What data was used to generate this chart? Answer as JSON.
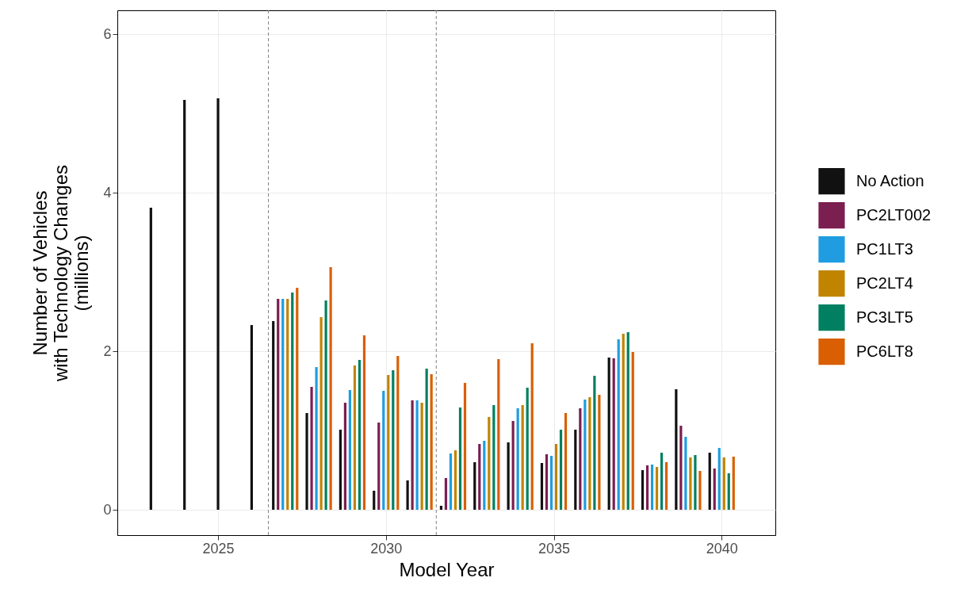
{
  "chart_data": {
    "type": "bar",
    "xlabel": "Model Year",
    "ylabel": "Number of Vehicles\nwith Technology Changes\n(millions)",
    "x": [
      2023,
      2024,
      2025,
      2026,
      2027,
      2028,
      2029,
      2030,
      2031,
      2032,
      2033,
      2034,
      2035,
      2036,
      2037,
      2038,
      2039,
      2040
    ],
    "series": [
      {
        "name": "No Action",
        "color": "#111111",
        "values": [
          3.81,
          5.17,
          5.19,
          2.33,
          2.38,
          1.22,
          1.01,
          0.24,
          0.37,
          0.05,
          0.6,
          0.85,
          0.59,
          1.01,
          1.92,
          0.5,
          1.52,
          0.72
        ]
      },
      {
        "name": "PC2LT002",
        "color": "#7b1e50",
        "values": [
          null,
          null,
          null,
          null,
          2.66,
          1.55,
          1.35,
          1.1,
          1.38,
          0.4,
          0.83,
          1.12,
          0.7,
          1.28,
          1.91,
          0.56,
          1.06,
          0.52
        ]
      },
      {
        "name": "PC1LT3",
        "color": "#1f9de0",
        "values": [
          null,
          null,
          null,
          null,
          2.66,
          1.8,
          1.51,
          1.5,
          1.38,
          0.71,
          0.87,
          1.28,
          0.68,
          1.39,
          2.15,
          0.57,
          0.92,
          0.78
        ]
      },
      {
        "name": "PC2LT4",
        "color": "#c08400",
        "values": [
          null,
          null,
          null,
          null,
          2.66,
          2.43,
          1.82,
          1.7,
          1.35,
          0.75,
          1.17,
          1.32,
          0.83,
          1.42,
          2.22,
          0.54,
          0.66,
          0.66
        ]
      },
      {
        "name": "PC3LT5",
        "color": "#008060",
        "values": [
          null,
          null,
          null,
          null,
          2.74,
          2.64,
          1.89,
          1.76,
          1.78,
          1.29,
          1.32,
          1.54,
          1.01,
          1.69,
          2.24,
          0.72,
          0.69,
          0.46
        ]
      },
      {
        "name": "PC6LT8",
        "color": "#d95f02",
        "values": [
          null,
          null,
          null,
          null,
          2.8,
          3.06,
          2.2,
          1.94,
          1.71,
          1.6,
          1.9,
          2.1,
          1.22,
          1.45,
          1.99,
          0.6,
          0.49,
          0.67
        ]
      }
    ],
    "xlim": [
      2022,
      2041.6
    ],
    "xticks": [
      2025,
      2030,
      2035,
      2040
    ],
    "ylim": [
      -0.32,
      6.3
    ],
    "yticks": [
      {
        "value": 0,
        "label": "0"
      },
      {
        "value": 2,
        "label": "2"
      },
      {
        "value": 4,
        "label": "4"
      },
      {
        "value": 6,
        "label": "6"
      }
    ],
    "ref_lines": [
      {
        "axis": "x",
        "value": 2026.5,
        "color": "#808080",
        "line_style": "dashed"
      },
      {
        "axis": "x",
        "value": 2031.5,
        "color": "#808080",
        "line_style": "dashed"
      }
    ],
    "grid": true,
    "legend": "right"
  }
}
